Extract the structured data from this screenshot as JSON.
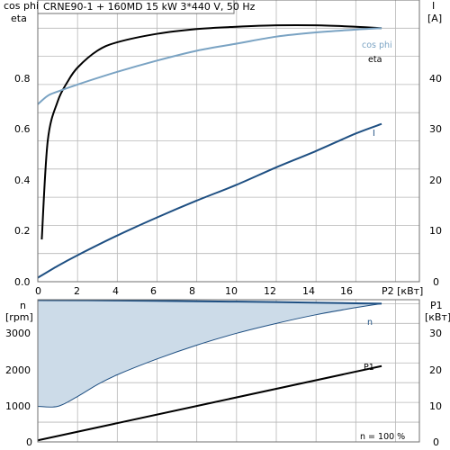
{
  "header": {
    "title": "CRNE90-1 + 160MD   15 kW   3*440 V, 50 Hz"
  },
  "colors": {
    "frame": "#6f6f6f",
    "grid": "#b7b7b7",
    "eta": "#000000",
    "cosphi": "#7aa3c3",
    "current": "#1e4f82",
    "speed": "#1e4f82",
    "speed_fill": "#ccdbe8",
    "p1": "#000000"
  },
  "chart_data": [
    {
      "type": "line",
      "x_label": "P2 [кВт]",
      "x_ticks": [
        "0",
        "2",
        "4",
        "6",
        "8",
        "10",
        "12",
        "14",
        "16"
      ],
      "xlim": [
        0,
        19.2
      ],
      "left_axis": {
        "label_top": "cos phi",
        "label_bottom": "eta",
        "ticks": [
          "0.0",
          "0.2",
          "0.4",
          "0.6",
          "0.8"
        ],
        "ylim": [
          0,
          1.0
        ]
      },
      "right_axis": {
        "label_top": "I",
        "label_bottom": "[A]",
        "ticks": [
          "0",
          "10",
          "20",
          "30",
          "40"
        ],
        "ylim": [
          0,
          50
        ]
      },
      "series": [
        {
          "name": "eta",
          "axis": "left",
          "x": [
            0.2,
            0.5,
            1.0,
            1.5,
            2.0,
            3.0,
            4.0,
            6.0,
            8.0,
            10.0,
            12.0,
            14.0,
            16.0,
            17.3
          ],
          "values": [
            0.15,
            0.5,
            0.64,
            0.71,
            0.76,
            0.82,
            0.85,
            0.88,
            0.897,
            0.905,
            0.91,
            0.91,
            0.905,
            0.9
          ]
        },
        {
          "name": "cos phi",
          "axis": "left",
          "x": [
            0.0,
            0.5,
            1.0,
            2.0,
            4.0,
            6.0,
            8.0,
            10.0,
            12.0,
            14.0,
            16.0,
            17.3
          ],
          "values": [
            0.63,
            0.66,
            0.675,
            0.7,
            0.745,
            0.785,
            0.82,
            0.845,
            0.87,
            0.885,
            0.895,
            0.9
          ]
        },
        {
          "name": "I",
          "axis": "right",
          "x": [
            0.0,
            1.0,
            2.0,
            4.0,
            6.0,
            8.0,
            10.0,
            12.0,
            14.0,
            16.0,
            17.3
          ],
          "values": [
            0.7,
            2.8,
            4.7,
            8.2,
            11.4,
            14.4,
            17.2,
            20.3,
            23.2,
            26.3,
            28.0
          ]
        }
      ]
    },
    {
      "type": "area",
      "annotation": "n = 100 %",
      "xlim": [
        0,
        19.2
      ],
      "left_axis": {
        "label_top": "n",
        "label_bottom": "[rpm]",
        "ticks": [
          "0",
          "1000",
          "2000",
          "3000"
        ],
        "ylim": [
          0,
          3600
        ]
      },
      "right_axis": {
        "label_top": "P1",
        "label_bottom": "[кВт]",
        "ticks": [
          "0",
          "10",
          "20",
          "30"
        ],
        "ylim": [
          0,
          36
        ]
      },
      "series": [
        {
          "name": "n",
          "axis": "left",
          "x": [
            0.0,
            4.0,
            8.0,
            12.0,
            16.0,
            17.3
          ],
          "values": [
            3590,
            3580,
            3560,
            3540,
            3510,
            3500
          ]
        },
        {
          "name": "n (min)",
          "axis": "left",
          "x": [
            0.0,
            1.0,
            2.0,
            3.0,
            4.0,
            6.0,
            8.0,
            10.0,
            12.0,
            14.0,
            16.0,
            17.3
          ],
          "values": [
            900,
            900,
            1150,
            1450,
            1700,
            2100,
            2450,
            2750,
            3000,
            3220,
            3400,
            3500
          ]
        },
        {
          "name": "P1",
          "axis": "right",
          "x": [
            0.0,
            17.3
          ],
          "values": [
            0.4,
            19.2
          ]
        }
      ]
    }
  ]
}
